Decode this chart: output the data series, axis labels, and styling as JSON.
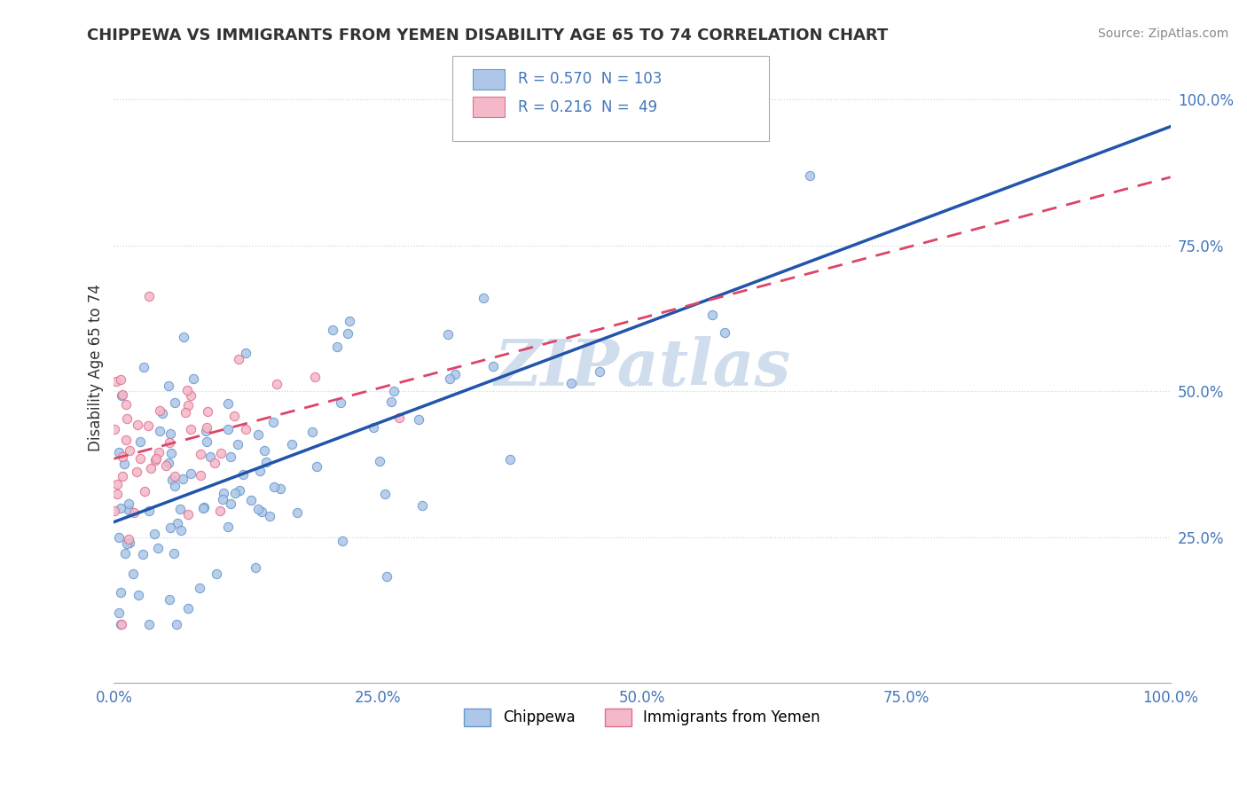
{
  "title": "CHIPPEWA VS IMMIGRANTS FROM YEMEN DISABILITY AGE 65 TO 74 CORRELATION CHART",
  "source": "Source: ZipAtlas.com",
  "ylabel": "Disability Age 65 to 74",
  "chippewa_R": 0.57,
  "chippewa_N": 103,
  "yemen_R": 0.216,
  "yemen_N": 49,
  "chippewa_dot_color": "#aec6e8",
  "chippewa_dot_edge": "#6699cc",
  "chippewa_line_color": "#2255aa",
  "yemen_dot_color": "#f4b8c8",
  "yemen_dot_edge": "#e07090",
  "yemen_line_color": "#dd4466",
  "watermark_color": "#d0dded",
  "legend_label_chippewa": "Chippewa",
  "legend_label_yemen": "Immigrants from Yemen",
  "title_color": "#333333",
  "source_color": "#888888",
  "tick_color": "#4477bb",
  "ylabel_color": "#333333"
}
